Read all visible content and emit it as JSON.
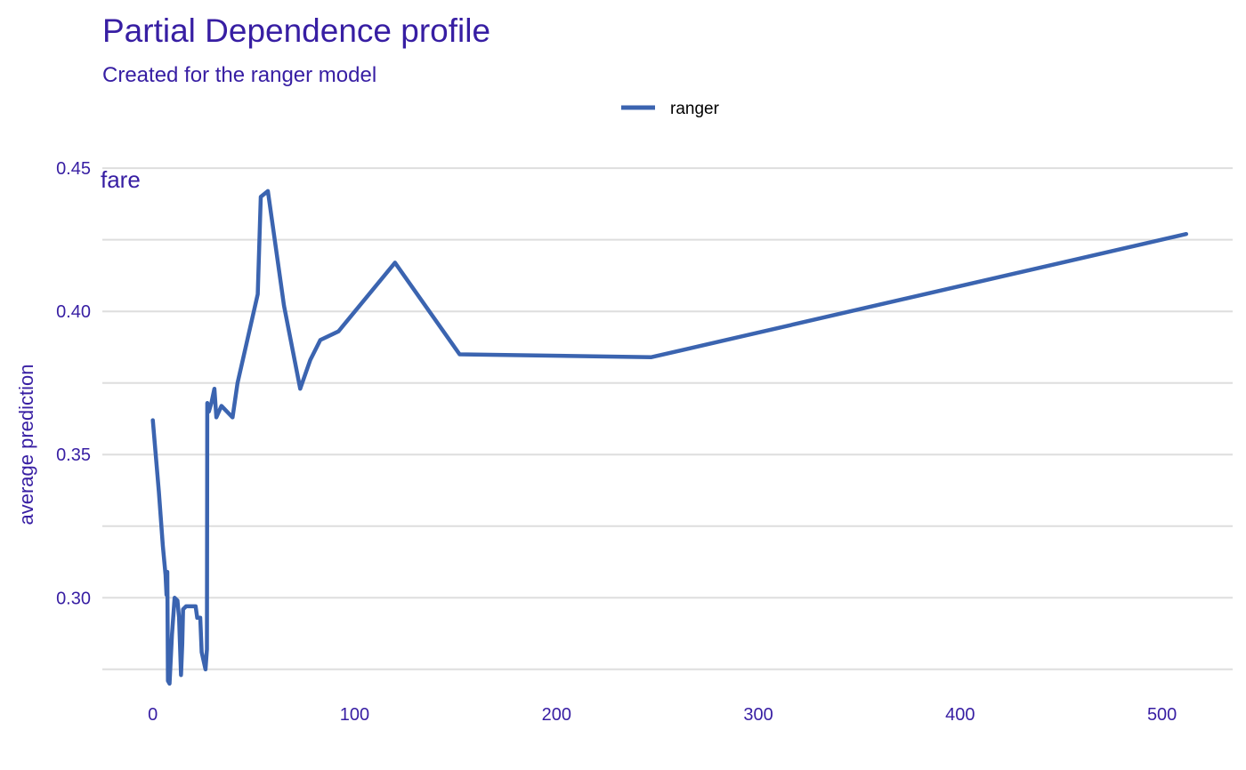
{
  "title": "Partial Dependence profile",
  "subtitle": "Created for the ranger model",
  "colors": {
    "text": "#371ea3",
    "line": "#3b64b0",
    "grid": "#dedede"
  },
  "chart_data": {
    "type": "line",
    "title": "Partial Dependence profile",
    "subtitle": "Created for the ranger model",
    "panel_label": "fare",
    "xlabel": "",
    "ylabel": "average prediction",
    "xlim": [
      -25,
      535
    ],
    "ylim": [
      0.265,
      0.4575
    ],
    "xticks": [
      0,
      100,
      200,
      300,
      400,
      500
    ],
    "yticks": [
      0.3,
      0.35,
      0.4,
      0.45
    ],
    "y_minor_gridlines": [
      0.275,
      0.325,
      0.375,
      0.425
    ],
    "grid": "horizontal",
    "legend_position": "top",
    "series": [
      {
        "name": "ranger",
        "color": "#3b64b0",
        "points": [
          [
            0,
            0.362
          ],
          [
            3,
            0.337
          ],
          [
            5,
            0.318
          ],
          [
            6.3,
            0.308
          ],
          [
            6.8,
            0.301
          ],
          [
            7.2,
            0.309
          ],
          [
            7.5,
            0.271
          ],
          [
            8.3,
            0.27
          ],
          [
            9.5,
            0.287
          ],
          [
            10.8,
            0.3
          ],
          [
            12.2,
            0.299
          ],
          [
            13,
            0.293
          ],
          [
            14,
            0.273
          ],
          [
            14.6,
            0.284
          ],
          [
            15,
            0.296
          ],
          [
            16.5,
            0.297
          ],
          [
            20,
            0.297
          ],
          [
            21.2,
            0.297
          ],
          [
            22,
            0.293
          ],
          [
            23.5,
            0.293
          ],
          [
            24.2,
            0.281
          ],
          [
            26.1,
            0.275
          ],
          [
            26.8,
            0.282
          ],
          [
            27,
            0.368
          ],
          [
            27.8,
            0.365
          ],
          [
            29,
            0.368
          ],
          [
            30.5,
            0.373
          ],
          [
            31.5,
            0.363
          ],
          [
            34,
            0.367
          ],
          [
            39.5,
            0.363
          ],
          [
            42,
            0.375
          ],
          [
            52,
            0.406
          ],
          [
            53.5,
            0.44
          ],
          [
            57,
            0.442
          ],
          [
            65,
            0.402
          ],
          [
            73,
            0.373
          ],
          [
            78,
            0.383
          ],
          [
            83,
            0.39
          ],
          [
            92,
            0.393
          ],
          [
            120,
            0.417
          ],
          [
            152,
            0.385
          ],
          [
            247,
            0.384
          ],
          [
            512,
            0.427
          ]
        ]
      }
    ]
  }
}
